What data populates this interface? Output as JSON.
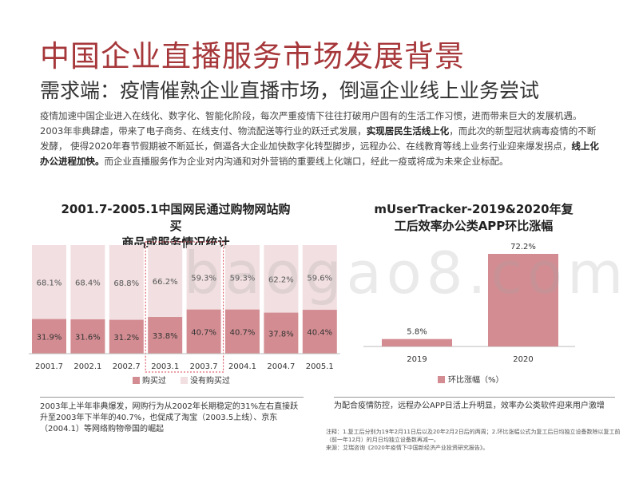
{
  "header": {
    "title": "中国企业直播服务市场发展背景",
    "subtitle": "需求端：疫情催熟企业直播市场，倒逼企业线上业务尝试"
  },
  "intro": {
    "p1": "疫情加速中国企业进入在线化、数字化、智能化阶段，每次严重疫情下往往打破用户固有的生活工作习惯，进而带来巨大的发展机遇。2003年非典肆虐，带来了电子商务、在线支付、物流配送等行业的跃迁式发展，",
    "b1": "实现居民生活线上化",
    "p2": "，而此次的新型冠状病毒疫情的不断发酵， 使得2020年春节假期被不断延长，倒逼各大企业加快数字化转型脚步，远程办公、在线教育等线上业务行业迎来爆发拐点，",
    "b2": "线上化办公进程加快。",
    "p3": "而企业直播服务作为企业对内沟通和对外营销的重要线上化端口，经此一疫或将成为未来企业标配。"
  },
  "watermark": "baogao8.com",
  "left_chart": {
    "title_line1": "2001.7-2005.1中国网民通过购物网站购买",
    "title_line2": "商品或服务情况统计",
    "note": "2003年上半年非典爆发，网购行为从2002年长期稳定的31%左右直接跃升至2003年下半年的40.7%，也促成了淘宝（2003.5上线）、京东（2004.1）等网络购物帝国的崛起"
  },
  "right_chart": {
    "title_line1": "mUserTracker-2019&2020年复",
    "title_line2": "工后效率办公类APP环比涨幅",
    "note": "为配合疫情防控，远程办公APP日活上升明显，效率办公类软件迎来用户激增"
  },
  "footnote": {
    "line1": "注释：1.复工后分别为19年2月11日后以及20年2月2日后的两周；2.环比涨幅公式为复工后日均独立设备数除以复工前（前一年12月）的月日均独立设备数再减一。",
    "line2": "来源：艾瑞咨询《2020年疫情下中国新经济产业投资研究报告》。"
  },
  "chart_data": [
    {
      "type": "bar",
      "stacked": true,
      "percent_stacked": true,
      "categories": [
        "2001.7",
        "2002.1",
        "2002.7",
        "2003.1",
        "2003.7",
        "2004.1",
        "2004.7",
        "2005.1"
      ],
      "series": [
        {
          "name": "没有购买过",
          "values": [
            68.1,
            68.4,
            68.8,
            66.2,
            59.3,
            59.3,
            62.2,
            59.6
          ],
          "labels": [
            "68.1%",
            "68.4%",
            "68.8%",
            "66.2%",
            "59.3%",
            "59.3%",
            "62.2%",
            "59.6%"
          ],
          "color": "#f1dfe1"
        },
        {
          "name": "购买过",
          "values": [
            31.9,
            31.6,
            31.2,
            33.8,
            40.7,
            40.7,
            37.8,
            40.4
          ],
          "labels": [
            "31.9%",
            "31.6%",
            "31.2%",
            "33.8%",
            "40.7%",
            "40.7%",
            "37.8%",
            "40.4%"
          ],
          "color": "#d38d92"
        }
      ],
      "legend": {
        "position": "bottom",
        "entries": [
          "购买过",
          "没有购买过"
        ]
      },
      "highlight_categories": [
        "2003.1",
        "2003.7"
      ],
      "ylim": [
        0,
        100
      ],
      "grid": false
    },
    {
      "type": "bar",
      "categories": [
        "2019",
        "2020"
      ],
      "series": [
        {
          "name": "环比涨幅（%）",
          "values": [
            5.8,
            72.2
          ],
          "labels": [
            "5.8%",
            "72.2%"
          ],
          "color": "#d38d92"
        }
      ],
      "legend": {
        "position": "bottom",
        "entries": [
          "环比涨幅（%）"
        ]
      },
      "grid": false
    }
  ]
}
